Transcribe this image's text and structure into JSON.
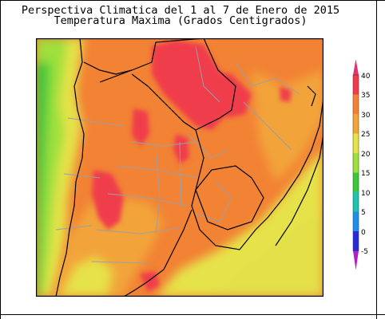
{
  "map": {
    "title_line1": "Perspectiva Climatica del  1 al 7 de Enero de 2015",
    "title_line2": "Temperatura Maxima (Grados Centigrados)",
    "variable_units": "Grados Centigrados",
    "region_shown": "Argentina, Uruguay, Paraguay, southern Brazil",
    "dominant_range": "30-35",
    "hot_spot_range": "35-40"
  },
  "legend": {
    "ticks": [
      "40",
      "35",
      "30",
      "25",
      "20",
      "15",
      "10",
      "5",
      "0",
      "-5"
    ],
    "bands": [
      {
        "from": 35,
        "to": 40,
        "color": "#f03c4c"
      },
      {
        "from": 30,
        "to": 35,
        "color": "#f28234"
      },
      {
        "from": 25,
        "to": 30,
        "color": "#f2a43a"
      },
      {
        "from": 20,
        "to": 25,
        "color": "#e6e24a"
      },
      {
        "from": 15,
        "to": 20,
        "color": "#9ee03c"
      },
      {
        "from": 10,
        "to": 15,
        "color": "#3cc83c"
      },
      {
        "from": 5,
        "to": 10,
        "color": "#20c2b0"
      },
      {
        "from": 0,
        "to": 5,
        "color": "#1e90e6"
      },
      {
        "from": -5,
        "to": 0,
        "color": "#2a2ad8"
      },
      {
        "from": -10,
        "to": -5,
        "color": "#b41ec8"
      }
    ],
    "top_arrow_color": "#e6326e",
    "bottom_arrow_color": "#b41ec8"
  }
}
